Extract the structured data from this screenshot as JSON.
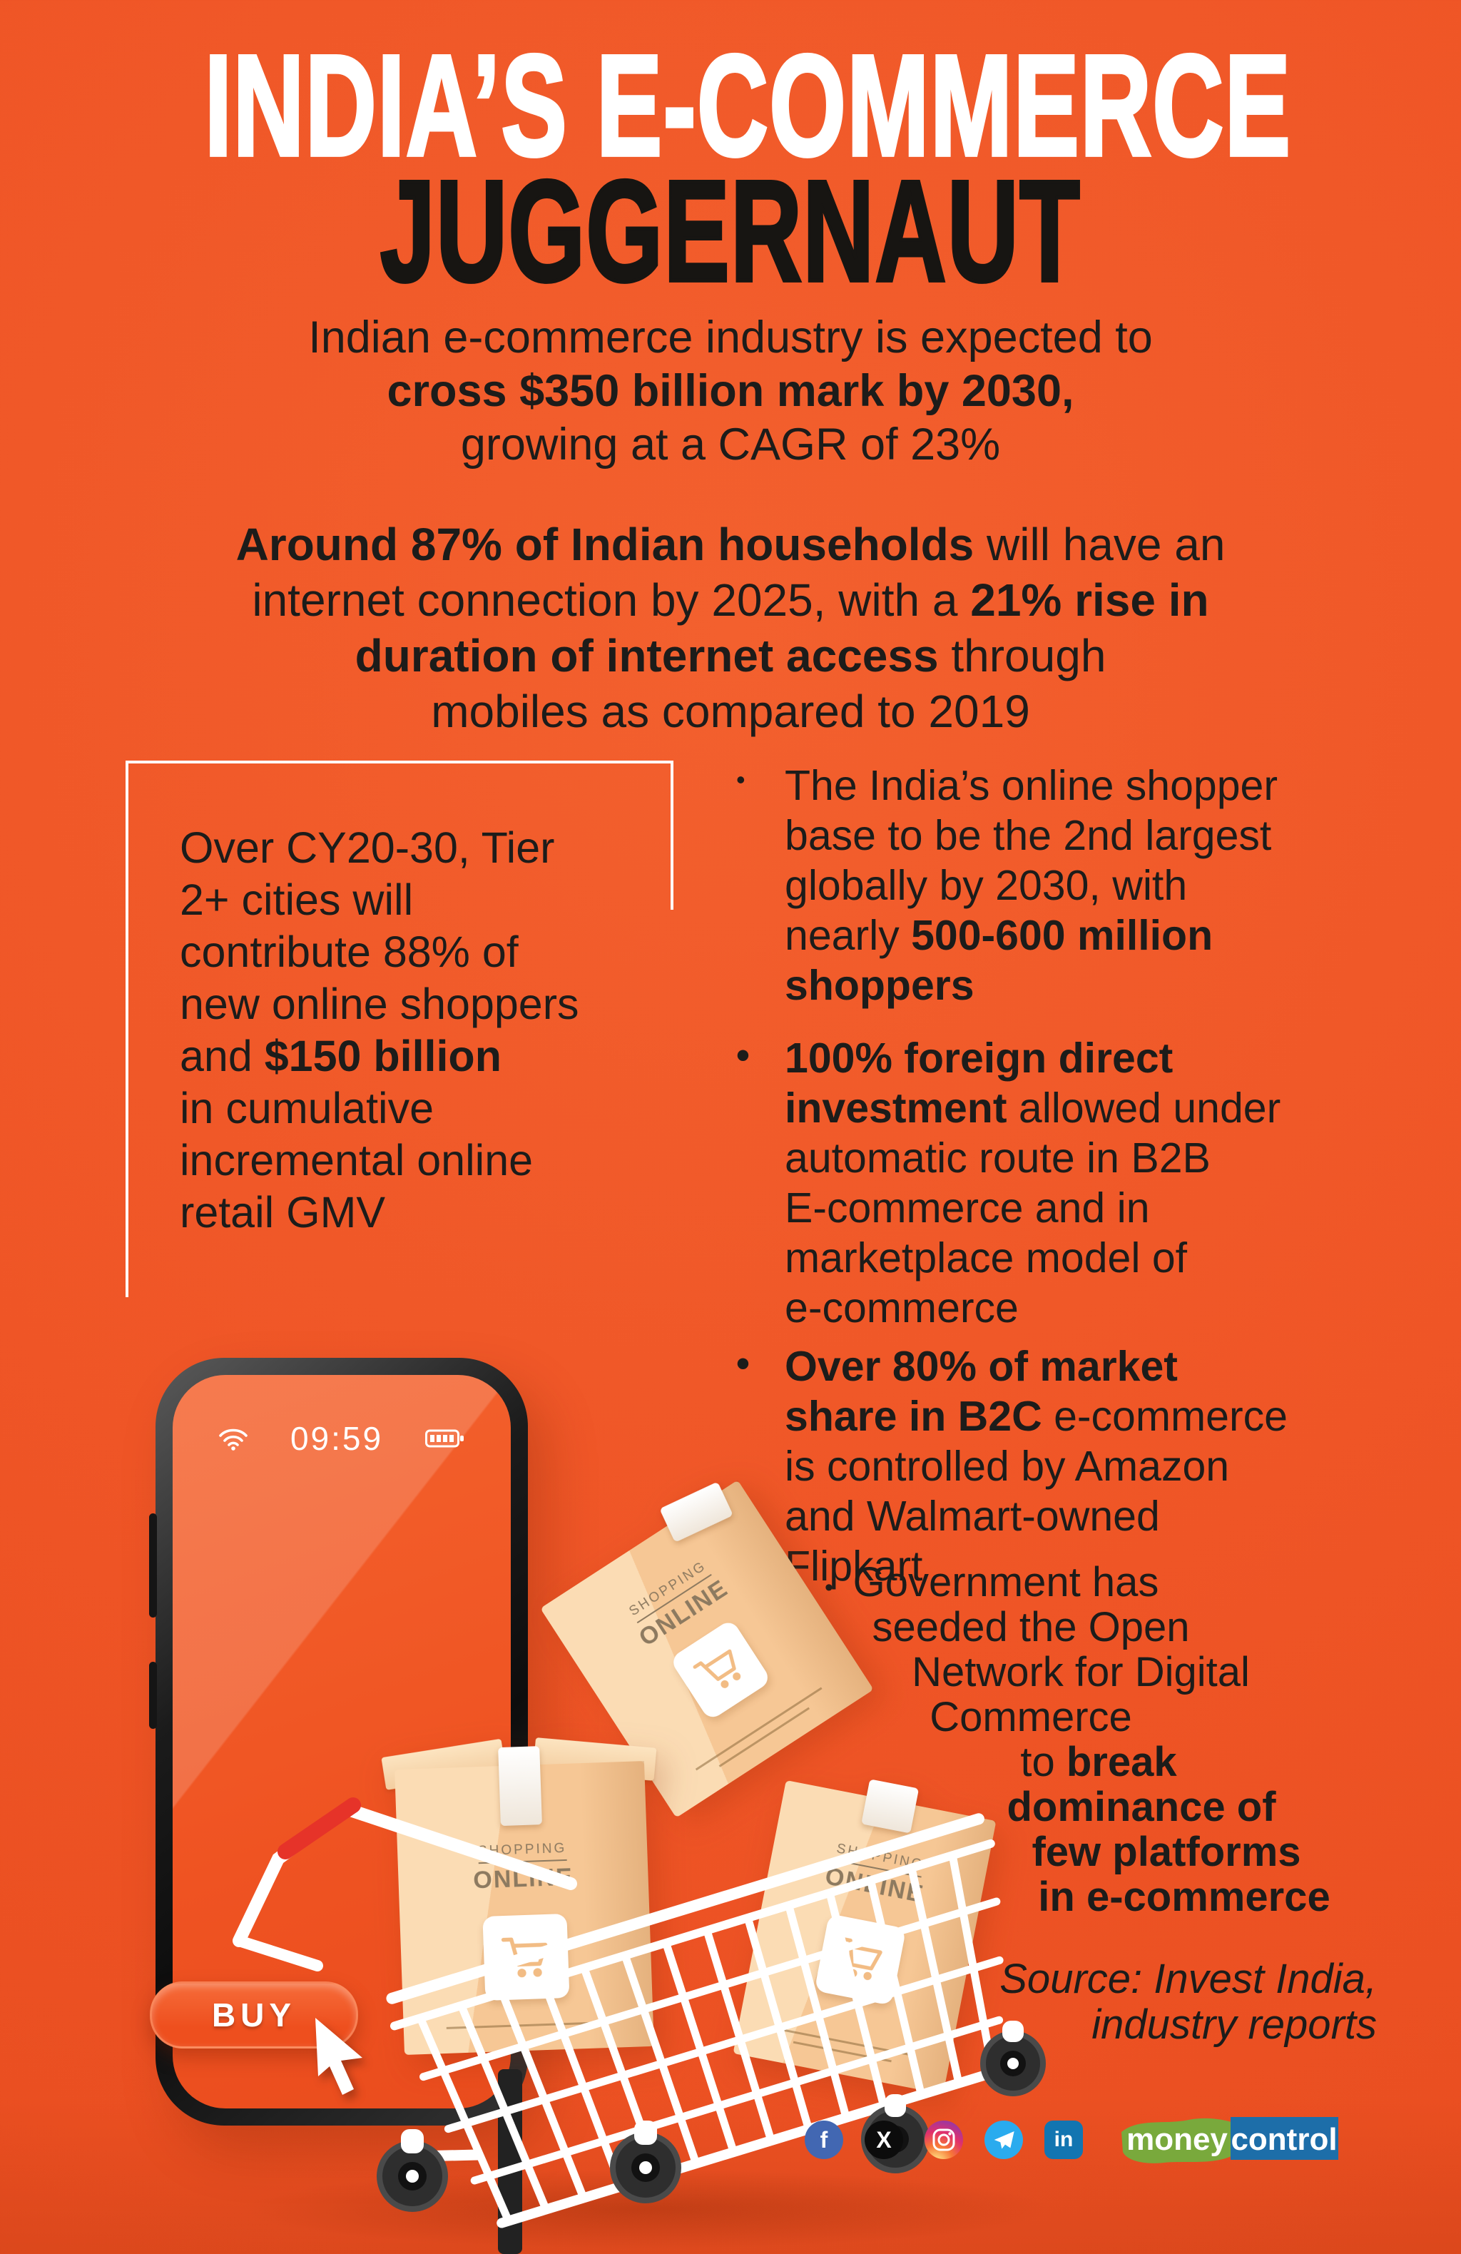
{
  "theme": {
    "bg": "#ef5526",
    "ink": "#1d1c1a",
    "buy": "#ee4f1e",
    "box-tan": "#f6c795",
    "box-tan-light": "#fbdcb4",
    "fb": "#4267B2",
    "tg": "#2AABEE",
    "li": "#1275B1",
    "mc-green": "#79A93C",
    "mc-blue": "#1D6EA9",
    "cart-red": "#e63329"
  },
  "title": {
    "line1": "INDIA’S E-COMMERCE",
    "line2": "JUGGERNAUT"
  },
  "intro": {
    "lines": [
      [
        {
          "t": "Indian e-commerce industry is expected to"
        }
      ],
      [
        {
          "t": "cross $350 billion mark by 2030,",
          "b": true
        }
      ],
      [
        {
          "t": "growing at a CAGR of 23%"
        }
      ]
    ]
  },
  "households": {
    "lines": [
      [
        {
          "t": "Around 87% of Indian households",
          "b": true
        },
        {
          "t": " will have an"
        }
      ],
      [
        {
          "t": "internet connection by 2025, with a "
        },
        {
          "t": "21% rise in",
          "b": true
        }
      ],
      [
        {
          "t": "duration of internet access",
          "b": true
        },
        {
          "t": " through"
        }
      ],
      [
        {
          "t": "mobiles as compared to 2019"
        }
      ]
    ]
  },
  "tier_box": {
    "lines": [
      [
        {
          "t": "Over CY20-30, Tier"
        }
      ],
      [
        {
          "t": "2+ cities will"
        }
      ],
      [
        {
          "t": "contribute 88% of"
        }
      ],
      [
        {
          "t": "new online shoppers"
        }
      ],
      [
        {
          "t": "and "
        },
        {
          "t": "$150 billion",
          "b": true
        }
      ],
      [
        {
          "t": "in cumulative"
        }
      ],
      [
        {
          "t": "incremental online"
        }
      ],
      [
        {
          "t": "retail GMV"
        }
      ]
    ]
  },
  "bullets": [
    {
      "marker": "•",
      "lines": [
        [
          {
            "t": "The India’s online shopper"
          }
        ],
        [
          {
            "t": "base to be the 2nd largest"
          }
        ],
        [
          {
            "t": "globally by 2030, with"
          }
        ],
        [
          {
            "t": "nearly "
          },
          {
            "t": "500-600 million",
            "b": true
          }
        ],
        [
          {
            "t": "shoppers",
            "b": true
          }
        ]
      ]
    },
    {
      "marker": "•",
      "lines": [
        [
          {
            "t": "100% foreign direct",
            "b": true
          }
        ],
        [
          {
            "t": "investment",
            "b": true
          },
          {
            "t": " allowed under"
          }
        ],
        [
          {
            "t": "automatic route in B2B"
          }
        ],
        [
          {
            "t": "E-commerce and in"
          }
        ],
        [
          {
            "t": "marketplace model of"
          }
        ],
        [
          {
            "t": "e-commerce"
          }
        ]
      ]
    },
    {
      "marker": "•",
      "lines": [
        [
          {
            "t": "Over 80% of market",
            "b": true
          }
        ],
        [
          {
            "t": "share in B2C",
            "b": true
          },
          {
            "t": " e-commerce"
          }
        ],
        [
          {
            "t": "is controlled by Amazon"
          }
        ],
        [
          {
            "t": "and Walmart-owned"
          }
        ],
        [
          {
            "t": "Flipkart"
          }
        ]
      ]
    }
  ],
  "gov_note": {
    "marker": "•",
    "lines": [
      [
        {
          "t": "Government has"
        }
      ],
      [
        {
          "t": "seeded the Open"
        }
      ],
      [
        {
          "t": "Network for Digital"
        }
      ],
      [
        {
          "t": "Commerce"
        }
      ],
      [
        {
          "t": "to "
        },
        {
          "t": "break",
          "b": true
        }
      ],
      [
        {
          "t": "dominance of",
          "b": true
        }
      ],
      [
        {
          "t": "few platforms",
          "b": true
        }
      ],
      [
        {
          "t": "in e-commerce",
          "b": true
        }
      ]
    ]
  },
  "source": {
    "line1": "Source: Invest India,",
    "line2": "industry reports"
  },
  "phone": {
    "time": "09:59",
    "buy_label": "BUY"
  },
  "box_label": {
    "top": "SHOPPING",
    "bottom": "ONLINE"
  },
  "social": {
    "icons": [
      {
        "name": "facebook",
        "glyph": "f"
      },
      {
        "name": "x",
        "glyph": "X"
      },
      {
        "name": "instagram"
      },
      {
        "name": "telegram"
      },
      {
        "name": "linkedin",
        "glyph": "in"
      }
    ]
  },
  "logo": {
    "money": "money",
    "control": "control"
  }
}
